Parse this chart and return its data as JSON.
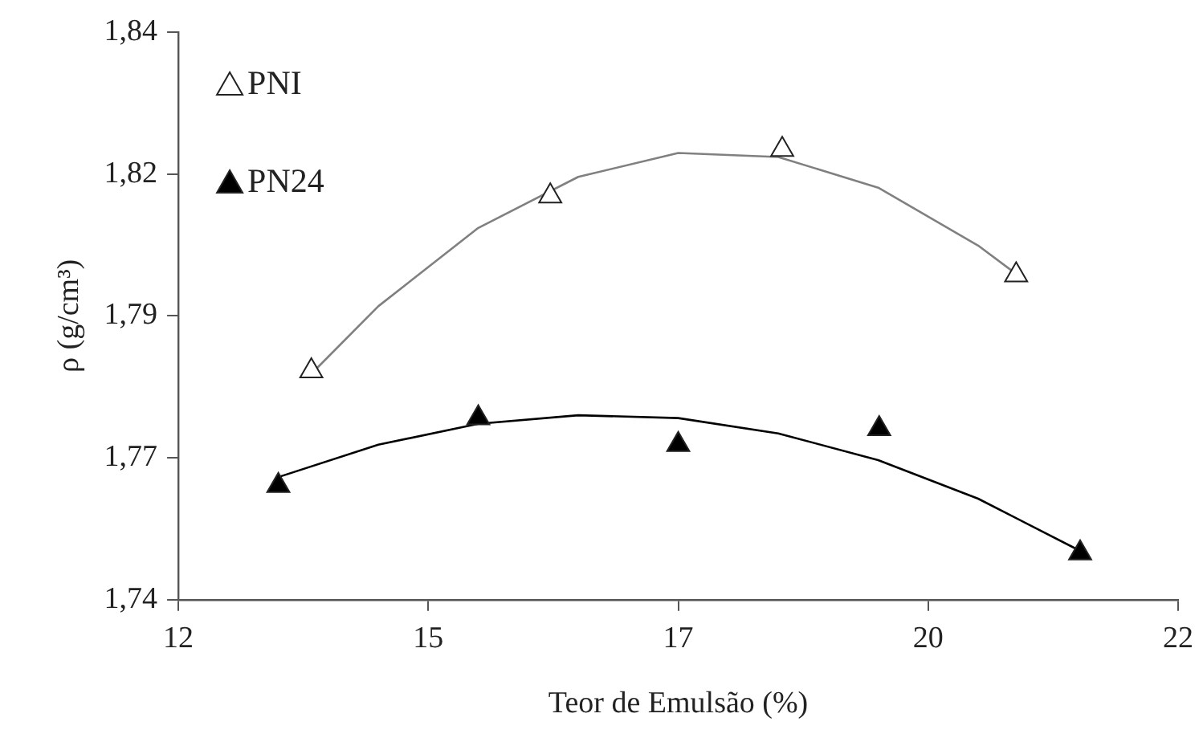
{
  "chart_data": {
    "type": "scatter",
    "xlabel": "Teor de Emulsão (%)",
    "ylabel": "ρ (g/cm³)",
    "xlim": [
      12,
      22
    ],
    "xticks": [
      12,
      {
        "value": 14.5,
        "label": "15"
      },
      17,
      {
        "value": 19.5,
        "label": "20"
      },
      22
    ],
    "ylim": [
      1.74,
      1.84
    ],
    "yticks": [
      {
        "value": 1.74,
        "label": "1,74"
      },
      {
        "value": 1.765,
        "label": "1,77"
      },
      {
        "value": 1.79,
        "label": "1,79"
      },
      {
        "value": 1.815,
        "label": "1,82"
      },
      {
        "value": 1.84,
        "label": "1,84"
      }
    ],
    "grid": false,
    "legend": "top left",
    "marker": "triangle",
    "series": [
      {
        "name": "PNI",
        "color": "#ffffff",
        "x": [
          13.33,
          15.72,
          18.04,
          20.38
        ],
        "values": [
          1.7803,
          1.8111,
          1.8193,
          1.7972
        ]
      },
      {
        "name": "PN24",
        "color": "#000000",
        "x": [
          13.0,
          15.0,
          17.0,
          19.01,
          21.02
        ],
        "values": [
          1.7601,
          1.772,
          1.7673,
          1.7701,
          1.7482
        ]
      },
      {
        "type": "line",
        "marker": "none",
        "color": "#808080",
        "x": [
          13.33,
          14,
          15,
          16,
          17,
          18,
          19,
          20,
          20.38
        ],
        "values": [
          1.7798,
          1.7917,
          1.8055,
          1.8145,
          1.8187,
          1.818,
          1.8126,
          1.8024,
          1.7974
        ]
      },
      {
        "type": "line",
        "marker": "none",
        "color": "#000000",
        "x": [
          13,
          14,
          15,
          16,
          17,
          18,
          19,
          20,
          21.02
        ],
        "values": [
          1.7616,
          1.7673,
          1.771,
          1.7725,
          1.772,
          1.7693,
          1.7646,
          1.7578,
          1.7486
        ]
      }
    ]
  }
}
